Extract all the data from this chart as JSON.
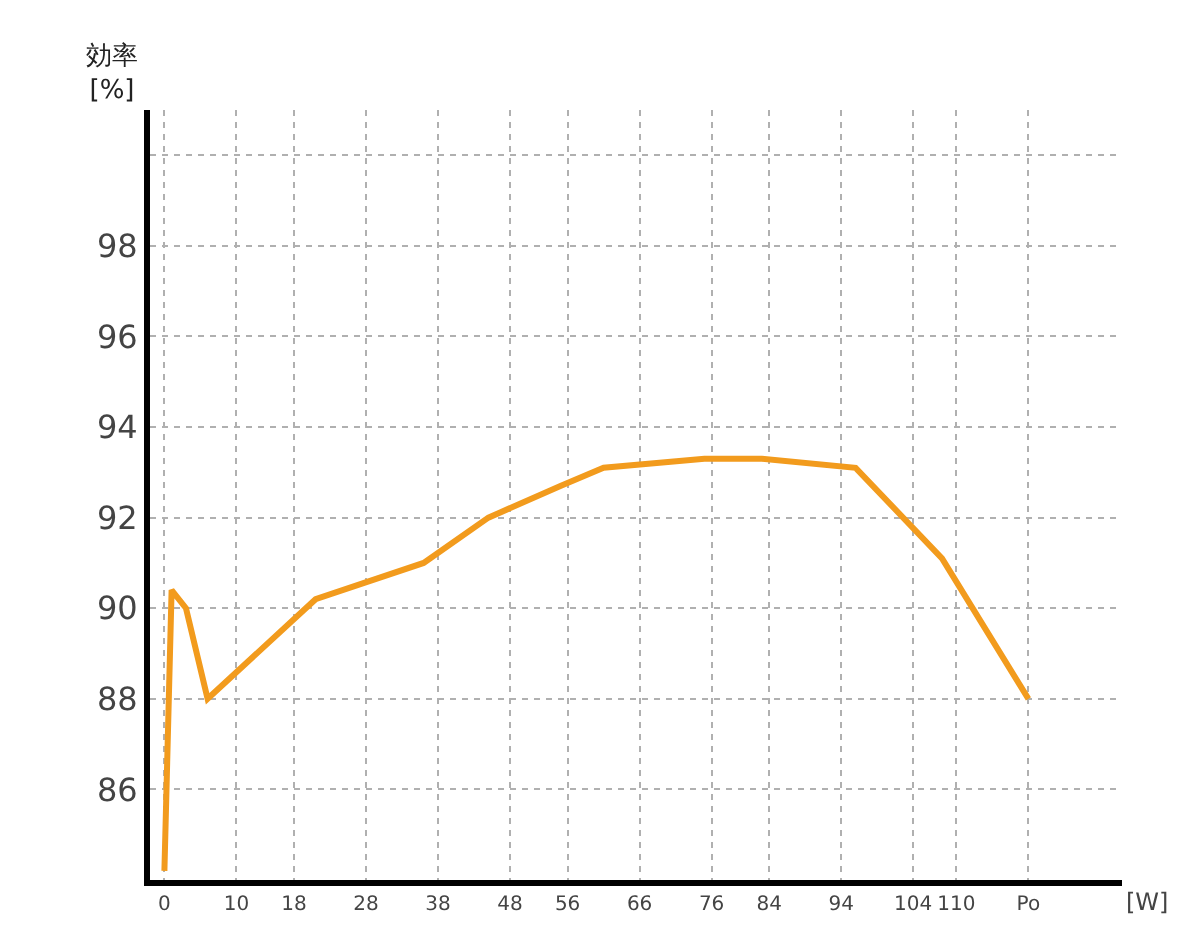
{
  "chart_data": {
    "type": "line",
    "xlabel": "[W]",
    "ylabel": "効率\n[%]",
    "x": [
      0,
      1,
      3,
      6,
      21,
      36,
      45,
      55,
      61,
      75,
      83,
      96,
      108,
      120
    ],
    "series": [
      {
        "color": "#f29b1d",
        "values": [
          84.2,
          90.4,
          90.0,
          88.0,
          90.2,
          91.0,
          92.0,
          92.7,
          93.1,
          93.3,
          93.3,
          93.1,
          91.1,
          88.0
        ]
      }
    ],
    "xlim": [
      -2,
      133
    ],
    "ylim": [
      84,
      101
    ],
    "xticks": [
      0,
      10,
      18,
      28,
      38,
      48,
      56,
      66,
      76,
      84,
      94,
      104,
      110,
      {
        "value": 120,
        "label": "Po"
      }
    ],
    "yticks": [
      86,
      88,
      90,
      92,
      94,
      96,
      98,
      {
        "value": 100,
        "label": null
      }
    ],
    "grid": true,
    "legend": false,
    "marker": "none",
    "line_style": "solid"
  }
}
